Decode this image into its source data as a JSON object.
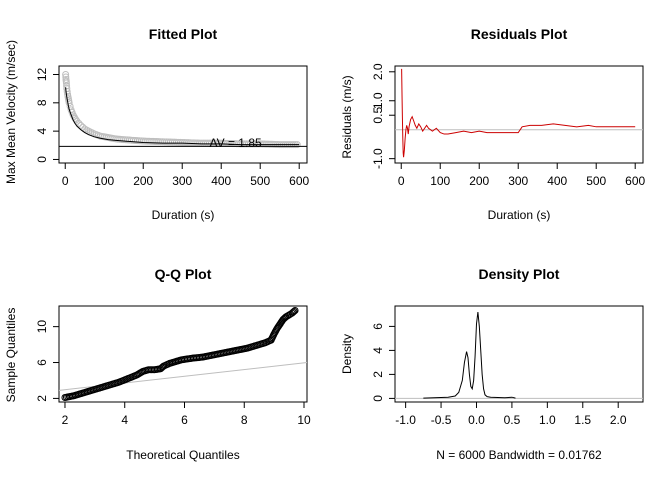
{
  "panels": {
    "fitted": {
      "title": "Fitted Plot",
      "xlabel": "Duration (s)",
      "ylabel": "Max Mean Velocity (m/sec)",
      "xticks": [
        0,
        100,
        200,
        300,
        400,
        500,
        600
      ],
      "yticks": [
        0,
        4,
        8,
        12
      ],
      "xlim": [
        -16,
        620
      ],
      "ylim": [
        -0.5,
        13.2
      ],
      "annotation": "AV = 1.85",
      "annotation_x": 370,
      "annotation_y": 2.3,
      "asymptote": 1.85,
      "observed_color": "#bebebe",
      "fit_color": "#000000",
      "line_color": "#000000"
    },
    "residuals": {
      "title": "Residuals Plot",
      "xlabel": "Duration (s)",
      "ylabel": "Residuals (m/s)",
      "xticks": [
        0,
        100,
        200,
        300,
        400,
        500,
        600
      ],
      "yticks": [
        -1.0,
        0.5,
        1.0,
        2.0
      ],
      "ytick_labels": [
        "-1.0",
        "0.5",
        "1.0",
        "2.0"
      ],
      "xlim": [
        -16,
        620
      ],
      "ylim": [
        -1.15,
        2.2
      ],
      "line_color": "#cc0000",
      "zero_color": "#bebebe"
    },
    "qq": {
      "title": "Q-Q Plot",
      "xlabel": "Theoretical Quantiles",
      "ylabel": "Sample Quantiles",
      "xticks": [
        2,
        4,
        6,
        8,
        10
      ],
      "yticks": [
        2,
        6,
        10
      ],
      "xlim": [
        1.8,
        10.1
      ],
      "ylim": [
        1.6,
        12.3
      ],
      "point_color": "#000000",
      "ref_color": "#bebebe"
    },
    "density": {
      "title": "Density Plot",
      "xlabel": "N = 6000    Bandwidth = 0.01762",
      "ylabel": "Density",
      "xticks": [
        -1.0,
        -0.5,
        0.0,
        0.5,
        1.0,
        1.5,
        2.0
      ],
      "xtick_labels": [
        "-1.0",
        "-0.5",
        "0.0",
        "0.5",
        "1.0",
        "1.5",
        "2.0"
      ],
      "yticks": [
        0,
        2,
        4,
        6
      ],
      "xlim": [
        -1.15,
        2.35
      ],
      "ylim": [
        -0.3,
        7.7
      ],
      "line_color": "#000000",
      "zero_color": "#bebebe"
    }
  },
  "chart_data": [
    {
      "type": "scatter",
      "title": "Fitted Plot",
      "xlabel": "Duration (s)",
      "ylabel": "Max Mean Velocity (m/sec)",
      "xlim": [
        0,
        600
      ],
      "ylim": [
        0,
        12
      ],
      "series": [
        {
          "x": [
            1,
            2,
            3,
            4,
            6,
            8,
            10,
            15,
            20,
            25,
            30,
            40,
            50,
            60,
            75,
            90,
            110,
            130,
            150,
            175,
            200,
            250,
            300,
            350,
            400,
            450,
            500,
            550,
            600
          ],
          "y": [
            12.0,
            11.3,
            10.8,
            10.0,
            9.2,
            8.6,
            8.0,
            7.0,
            6.3,
            5.8,
            5.4,
            4.8,
            4.3,
            4.0,
            3.6,
            3.3,
            3.1,
            2.9,
            2.8,
            2.7,
            2.6,
            2.5,
            2.4,
            2.3,
            2.3,
            2.2,
            2.2,
            2.1,
            2.1
          ]
        },
        {
          "x": [
            1,
            2,
            4,
            6,
            8,
            10,
            15,
            20,
            25,
            30,
            40,
            50,
            60,
            75,
            90,
            110,
            130,
            150,
            175,
            200,
            250,
            300,
            350,
            400,
            450,
            500,
            550,
            600
          ],
          "y": [
            10.2,
            9.6,
            8.8,
            8.2,
            7.6,
            7.1,
            6.3,
            5.6,
            5.1,
            4.7,
            4.2,
            3.8,
            3.5,
            3.2,
            3.0,
            2.8,
            2.7,
            2.6,
            2.5,
            2.4,
            2.3,
            2.3,
            2.2,
            2.2,
            2.1,
            2.1,
            2.1,
            2.1
          ]
        }
      ]
    },
    {
      "type": "line",
      "title": "Residuals Plot",
      "xlabel": "Duration (s)",
      "ylabel": "Residuals (m/s)",
      "xlim": [
        0,
        600
      ],
      "ylim": [
        -1,
        2
      ],
      "series": [
        {
          "x": [
            1,
            2,
            3,
            4,
            5,
            6,
            8,
            10,
            12,
            14,
            16,
            18,
            20,
            24,
            28,
            32,
            36,
            40,
            45,
            50,
            55,
            60,
            65,
            70,
            80,
            90,
            100,
            110,
            120,
            140,
            160,
            180,
            200,
            220,
            250,
            280,
            300,
            310,
            330,
            360,
            390,
            420,
            450,
            480,
            500,
            520,
            550,
            580,
            600
          ],
          "y": [
            2.1,
            1.2,
            0.4,
            -0.3,
            -0.8,
            -0.95,
            -0.7,
            -0.3,
            0.0,
            0.15,
            0.05,
            -0.15,
            0.1,
            0.35,
            0.45,
            0.3,
            0.15,
            0.05,
            0.2,
            0.1,
            -0.05,
            0.05,
            0.15,
            0.05,
            -0.05,
            0.05,
            -0.1,
            -0.15,
            -0.15,
            -0.1,
            -0.05,
            -0.1,
            -0.05,
            -0.1,
            -0.1,
            -0.1,
            -0.1,
            0.1,
            0.15,
            0.15,
            0.2,
            0.15,
            0.1,
            0.15,
            0.1,
            0.1,
            0.1,
            0.1,
            0.1
          ]
        }
      ]
    },
    {
      "type": "scatter",
      "title": "Q-Q Plot",
      "xlabel": "Theoretical Quantiles",
      "ylabel": "Sample Quantiles",
      "xlim": [
        2,
        10
      ],
      "ylim": [
        2,
        12
      ],
      "series": [
        {
          "x": [
            2.0,
            2.3,
            2.6,
            2.9,
            3.2,
            3.5,
            3.8,
            4.1,
            4.4,
            4.6,
            4.8,
            5.0,
            5.2,
            5.3,
            5.5,
            5.7,
            5.9,
            6.1,
            6.3,
            6.6,
            6.9,
            7.2,
            7.5,
            7.8,
            8.1,
            8.4,
            8.7,
            8.9,
            9.0,
            9.1,
            9.2,
            9.3,
            9.4,
            9.5,
            9.6,
            9.7
          ],
          "y": [
            2.1,
            2.3,
            2.6,
            2.9,
            3.2,
            3.5,
            3.8,
            4.2,
            4.6,
            5.0,
            5.2,
            5.2,
            5.3,
            5.6,
            5.9,
            6.1,
            6.3,
            6.4,
            6.5,
            6.6,
            6.8,
            7.0,
            7.2,
            7.4,
            7.6,
            7.9,
            8.2,
            8.5,
            9.2,
            9.8,
            10.3,
            10.8,
            11.1,
            11.3,
            11.5,
            11.8
          ]
        },
        {
          "x": [
            1.8,
            10.1
          ],
          "y": [
            2.9,
            6.0
          ]
        }
      ]
    },
    {
      "type": "line",
      "title": "Density Plot",
      "xlabel": "N = 6000    Bandwidth = 0.01762",
      "ylabel": "Density",
      "xlim": [
        -1.0,
        2.0
      ],
      "ylim": [
        0,
        6
      ],
      "series": [
        {
          "x": [
            -0.75,
            -0.6,
            -0.4,
            -0.3,
            -0.25,
            -0.2,
            -0.17,
            -0.14,
            -0.12,
            -0.1,
            -0.08,
            -0.06,
            -0.04,
            -0.02,
            0.0,
            0.02,
            0.04,
            0.06,
            0.08,
            0.1,
            0.12,
            0.15,
            0.2,
            0.3,
            0.4,
            0.5,
            0.55
          ],
          "y": [
            0.02,
            0.05,
            0.1,
            0.2,
            0.5,
            1.5,
            3.0,
            3.9,
            3.4,
            2.0,
            1.0,
            0.8,
            1.5,
            3.5,
            6.2,
            7.2,
            6.0,
            4.0,
            2.0,
            0.8,
            0.3,
            0.15,
            0.1,
            0.08,
            0.05,
            0.1,
            0.02
          ]
        }
      ]
    }
  ]
}
